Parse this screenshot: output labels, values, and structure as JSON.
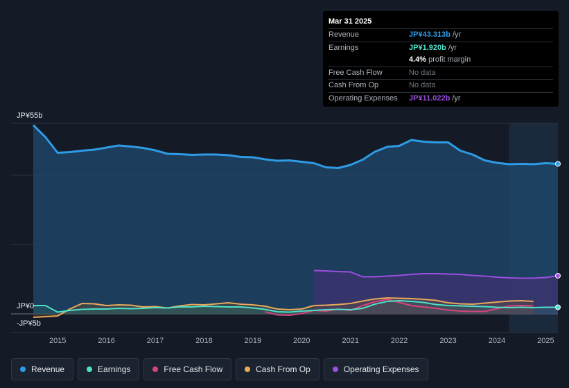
{
  "chart_data": {
    "type": "area",
    "ylabel_top": "JP¥55b",
    "ylabel_zero": "JP¥0",
    "ylabel_bottom": "-JP¥5b",
    "ylim": [
      -5,
      55
    ],
    "xlim": [
      2014.5,
      2025.25
    ],
    "x_ticks": [
      "2015",
      "2016",
      "2017",
      "2018",
      "2019",
      "2020",
      "2021",
      "2022",
      "2023",
      "2024",
      "2025"
    ],
    "x_tick_values": [
      2015,
      2016,
      2017,
      2018,
      2019,
      2020,
      2021,
      2022,
      2023,
      2024,
      2025
    ],
    "gridlines": [
      55,
      40,
      20,
      0
    ],
    "forecast_start": 2024.25,
    "series": [
      {
        "name": "Revenue",
        "color": "#2e9be6",
        "points": [
          [
            2014.5,
            54.5
          ],
          [
            2014.75,
            51
          ],
          [
            2015.0,
            46.5
          ],
          [
            2015.25,
            46.7
          ],
          [
            2015.5,
            47.1
          ],
          [
            2015.75,
            47.4
          ],
          [
            2016.0,
            48.0
          ],
          [
            2016.25,
            48.6
          ],
          [
            2016.5,
            48.3
          ],
          [
            2016.75,
            47.9
          ],
          [
            2017.0,
            47.2
          ],
          [
            2017.25,
            46.2
          ],
          [
            2017.5,
            46.1
          ],
          [
            2017.75,
            45.9
          ],
          [
            2018.0,
            46.0
          ],
          [
            2018.25,
            46.0
          ],
          [
            2018.5,
            45.8
          ],
          [
            2018.75,
            45.3
          ],
          [
            2019.0,
            45.2
          ],
          [
            2019.25,
            44.6
          ],
          [
            2019.5,
            44.2
          ],
          [
            2019.75,
            44.3
          ],
          [
            2020.0,
            43.9
          ],
          [
            2020.25,
            43.5
          ],
          [
            2020.5,
            42.3
          ],
          [
            2020.75,
            42.1
          ],
          [
            2021.0,
            43.0
          ],
          [
            2021.25,
            44.5
          ],
          [
            2021.5,
            46.8
          ],
          [
            2021.75,
            48.2
          ],
          [
            2022.0,
            48.5
          ],
          [
            2022.25,
            50.2
          ],
          [
            2022.5,
            49.7
          ],
          [
            2022.75,
            49.5
          ],
          [
            2023.0,
            49.5
          ],
          [
            2023.25,
            47.1
          ],
          [
            2023.5,
            46.0
          ],
          [
            2023.75,
            44.3
          ],
          [
            2024.0,
            43.6
          ],
          [
            2024.25,
            43.2
          ],
          [
            2024.5,
            43.3
          ],
          [
            2024.75,
            43.2
          ],
          [
            2025.0,
            43.5
          ],
          [
            2025.25,
            43.3
          ]
        ]
      },
      {
        "name": "Earnings",
        "color": "#4ee0c8",
        "points": [
          [
            2014.5,
            2.4
          ],
          [
            2014.75,
            2.4
          ],
          [
            2015.0,
            0.5
          ],
          [
            2015.25,
            1.0
          ],
          [
            2015.5,
            1.3
          ],
          [
            2015.75,
            1.4
          ],
          [
            2016.0,
            1.4
          ],
          [
            2016.25,
            1.6
          ],
          [
            2016.5,
            1.5
          ],
          [
            2016.75,
            1.6
          ],
          [
            2017.0,
            1.8
          ],
          [
            2017.25,
            1.7
          ],
          [
            2017.5,
            2.0
          ],
          [
            2017.75,
            2.0
          ],
          [
            2018.0,
            2.2
          ],
          [
            2018.25,
            2.1
          ],
          [
            2018.5,
            2.0
          ],
          [
            2018.75,
            2.0
          ],
          [
            2019.0,
            1.7
          ],
          [
            2019.25,
            1.3
          ],
          [
            2019.5,
            0.6
          ],
          [
            2019.75,
            0.5
          ],
          [
            2020.0,
            0.8
          ],
          [
            2020.25,
            1.0
          ],
          [
            2020.5,
            1.2
          ],
          [
            2020.75,
            1.3
          ],
          [
            2021.0,
            1.2
          ],
          [
            2021.25,
            1.6
          ],
          [
            2021.5,
            2.8
          ],
          [
            2021.75,
            3.6
          ],
          [
            2022.0,
            3.8
          ],
          [
            2022.25,
            3.6
          ],
          [
            2022.5,
            3.3
          ],
          [
            2022.75,
            2.7
          ],
          [
            2023.0,
            2.4
          ],
          [
            2023.25,
            2.3
          ],
          [
            2023.5,
            2.2
          ],
          [
            2023.75,
            2.1
          ],
          [
            2024.0,
            1.9
          ],
          [
            2024.25,
            1.8
          ],
          [
            2024.5,
            1.9
          ],
          [
            2024.75,
            1.8
          ],
          [
            2025.0,
            1.9
          ],
          [
            2025.25,
            1.9
          ]
        ]
      },
      {
        "name": "Free Cash Flow",
        "color": "#d6457a",
        "points": [
          [
            2019.25,
            0.6
          ],
          [
            2019.5,
            -0.3
          ],
          [
            2019.75,
            -0.4
          ],
          [
            2020.0,
            0.1
          ],
          [
            2020.25,
            1.0
          ],
          [
            2020.5,
            0.8
          ],
          [
            2020.75,
            1.4
          ],
          [
            2021.0,
            1.0
          ],
          [
            2021.25,
            2.4
          ],
          [
            2021.5,
            3.5
          ],
          [
            2021.75,
            4.2
          ],
          [
            2022.0,
            3.3
          ],
          [
            2022.25,
            2.4
          ],
          [
            2022.5,
            2.0
          ],
          [
            2022.75,
            1.6
          ],
          [
            2023.0,
            1.1
          ],
          [
            2023.25,
            0.8
          ],
          [
            2023.5,
            0.7
          ],
          [
            2023.75,
            0.7
          ],
          [
            2024.0,
            1.5
          ],
          [
            2024.25,
            2.3
          ],
          [
            2024.5,
            2.4
          ],
          [
            2024.75,
            2.3
          ]
        ]
      },
      {
        "name": "Cash From Op",
        "color": "#e9a95b",
        "points": [
          [
            2014.5,
            -1.0
          ],
          [
            2014.75,
            -0.8
          ],
          [
            2015.0,
            -0.6
          ],
          [
            2015.25,
            1.4
          ],
          [
            2015.5,
            3.0
          ],
          [
            2015.75,
            2.9
          ],
          [
            2016.0,
            2.4
          ],
          [
            2016.25,
            2.6
          ],
          [
            2016.5,
            2.5
          ],
          [
            2016.75,
            2.0
          ],
          [
            2017.0,
            2.1
          ],
          [
            2017.25,
            1.7
          ],
          [
            2017.5,
            2.3
          ],
          [
            2017.75,
            2.7
          ],
          [
            2018.0,
            2.6
          ],
          [
            2018.25,
            2.9
          ],
          [
            2018.5,
            3.2
          ],
          [
            2018.75,
            2.8
          ],
          [
            2019.0,
            2.6
          ],
          [
            2019.25,
            2.2
          ],
          [
            2019.5,
            1.4
          ],
          [
            2019.75,
            1.2
          ],
          [
            2020.0,
            1.4
          ],
          [
            2020.25,
            2.4
          ],
          [
            2020.5,
            2.5
          ],
          [
            2020.75,
            2.7
          ],
          [
            2021.0,
            3.0
          ],
          [
            2021.25,
            3.7
          ],
          [
            2021.5,
            4.3
          ],
          [
            2021.75,
            4.6
          ],
          [
            2022.0,
            4.5
          ],
          [
            2022.25,
            4.4
          ],
          [
            2022.5,
            4.2
          ],
          [
            2022.75,
            3.9
          ],
          [
            2023.0,
            3.2
          ],
          [
            2023.25,
            2.9
          ],
          [
            2023.5,
            2.8
          ],
          [
            2023.75,
            3.1
          ],
          [
            2024.0,
            3.4
          ],
          [
            2024.25,
            3.7
          ],
          [
            2024.5,
            3.8
          ],
          [
            2024.75,
            3.6
          ]
        ]
      },
      {
        "name": "Operating Expenses",
        "color": "#9b4ee0",
        "points": [
          [
            2020.25,
            12.5
          ],
          [
            2020.5,
            12.4
          ],
          [
            2020.75,
            12.2
          ],
          [
            2021.0,
            12.1
          ],
          [
            2021.25,
            10.7
          ],
          [
            2021.5,
            10.7
          ],
          [
            2021.75,
            10.9
          ],
          [
            2022.0,
            11.1
          ],
          [
            2022.25,
            11.4
          ],
          [
            2022.5,
            11.6
          ],
          [
            2022.75,
            11.6
          ],
          [
            2023.0,
            11.5
          ],
          [
            2023.25,
            11.4
          ],
          [
            2023.5,
            11.1
          ],
          [
            2023.75,
            10.9
          ],
          [
            2024.0,
            10.6
          ],
          [
            2024.25,
            10.4
          ],
          [
            2024.5,
            10.3
          ],
          [
            2024.75,
            10.3
          ],
          [
            2025.0,
            10.5
          ],
          [
            2025.25,
            11.0
          ]
        ]
      }
    ]
  },
  "tooltip": {
    "date": "Mar 31 2025",
    "rows": [
      {
        "label": "Revenue",
        "value": "JP¥43.313b",
        "unit": "/yr",
        "color": "#2e9be6"
      },
      {
        "label": "Earnings",
        "value": "JP¥1.920b",
        "unit": "/yr",
        "color": "#4ee0c8"
      },
      {
        "label": "",
        "value": "4.4%",
        "unit": "profit margin",
        "color": "#ffffff"
      },
      {
        "label": "Free Cash Flow",
        "value": "No data",
        "unit": "",
        "color": "muted"
      },
      {
        "label": "Cash From Op",
        "value": "No data",
        "unit": "",
        "color": "muted"
      },
      {
        "label": "Operating Expenses",
        "value": "JP¥11.022b",
        "unit": "/yr",
        "color": "#9b4ee0"
      }
    ]
  },
  "legend": [
    {
      "label": "Revenue",
      "color": "#2e9be6"
    },
    {
      "label": "Earnings",
      "color": "#4ee0c8"
    },
    {
      "label": "Free Cash Flow",
      "color": "#d6457a"
    },
    {
      "label": "Cash From Op",
      "color": "#e9a95b"
    },
    {
      "label": "Operating Expenses",
      "color": "#9b4ee0"
    }
  ]
}
